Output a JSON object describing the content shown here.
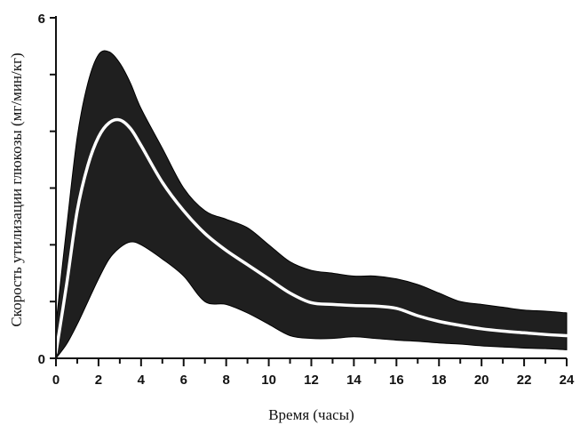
{
  "chart_data": {
    "type": "area",
    "title": "",
    "xlabel": "Время (часы)",
    "ylabel": "Скорость утилизации глюкозы (мг/мин/кг)",
    "xlim": [
      0,
      24
    ],
    "ylim": [
      0,
      6
    ],
    "xticks": [
      0,
      2,
      4,
      6,
      8,
      10,
      12,
      14,
      16,
      18,
      20,
      22,
      24
    ],
    "yticks": [
      0,
      6
    ],
    "grid": false,
    "legend": "none",
    "colors": {
      "band": "#1f1f1f",
      "mean_line": "#ffffff",
      "axis": "#111111"
    },
    "x": [
      0,
      0.5,
      1,
      1.5,
      2,
      2.5,
      3,
      3.5,
      4,
      5,
      6,
      7,
      8,
      9,
      10,
      11,
      12,
      13,
      14,
      15,
      16,
      17,
      18,
      19,
      20,
      21,
      22,
      23,
      24
    ],
    "series": [
      {
        "role": "upper",
        "values": [
          0.6,
          2.3,
          3.9,
          4.85,
          5.35,
          5.4,
          5.2,
          4.85,
          4.4,
          3.7,
          3.0,
          2.6,
          2.45,
          2.3,
          2.0,
          1.7,
          1.55,
          1.5,
          1.45,
          1.45,
          1.4,
          1.3,
          1.15,
          1.0,
          0.95,
          0.9,
          0.85,
          0.83,
          0.8
        ]
      },
      {
        "role": "mean",
        "values": [
          0.1,
          1.3,
          2.6,
          3.4,
          3.9,
          4.15,
          4.2,
          4.05,
          3.75,
          3.1,
          2.6,
          2.2,
          1.9,
          1.65,
          1.4,
          1.15,
          0.98,
          0.95,
          0.93,
          0.92,
          0.88,
          0.75,
          0.65,
          0.58,
          0.52,
          0.48,
          0.45,
          0.42,
          0.4
        ]
      },
      {
        "role": "lower",
        "values": [
          0.0,
          0.25,
          0.6,
          1.0,
          1.4,
          1.75,
          1.95,
          2.05,
          2.0,
          1.75,
          1.45,
          1.0,
          0.95,
          0.8,
          0.6,
          0.4,
          0.35,
          0.35,
          0.38,
          0.35,
          0.32,
          0.3,
          0.27,
          0.25,
          0.22,
          0.2,
          0.18,
          0.17,
          0.15
        ]
      }
    ]
  }
}
